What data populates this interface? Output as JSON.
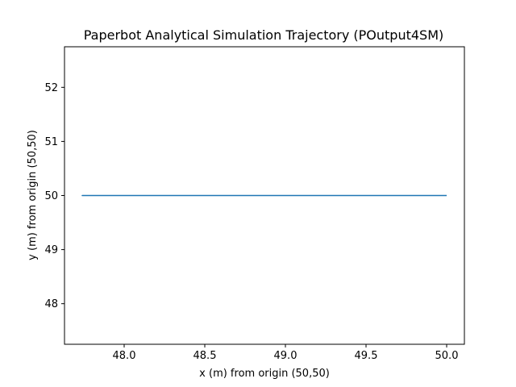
{
  "chart_data": {
    "type": "line",
    "title": "Paperbot Analytical Simulation Trajectory (POutput4SM)",
    "xlabel": "x (m) from origin (50,50)",
    "ylabel": "y (m) from origin (50,50)",
    "xlim": [
      47.63,
      50.11
    ],
    "ylim": [
      47.25,
      52.75
    ],
    "xticks": [
      48.0,
      48.5,
      49.0,
      49.5,
      50.0
    ],
    "xtick_labels": [
      "48.0",
      "48.5",
      "49.0",
      "49.5",
      "50.0"
    ],
    "yticks": [
      48,
      49,
      50,
      51,
      52
    ],
    "ytick_labels": [
      "48",
      "49",
      "50",
      "51",
      "52"
    ],
    "grid": false,
    "series": [
      {
        "color": "#1f77b4",
        "x": [
          50.0,
          47.74,
          47.94,
          47.74
        ],
        "y": [
          50.0,
          50.0,
          50.0,
          50.0
        ]
      }
    ]
  }
}
